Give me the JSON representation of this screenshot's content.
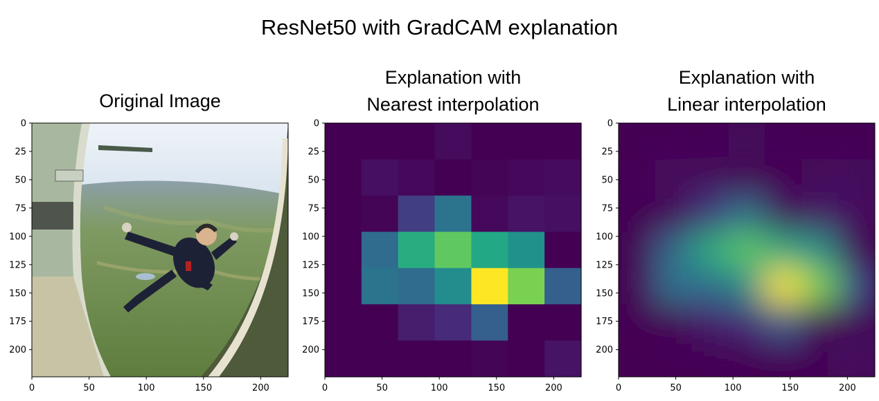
{
  "figure": {
    "suptitle": "ResNet50 with GradCAM explanation"
  },
  "colors": {
    "viridis": [
      "#440154",
      "#482475",
      "#414487",
      "#355f8d",
      "#2a788e",
      "#21918c",
      "#22a884",
      "#44bf70",
      "#7ad151",
      "#bddf26",
      "#fde725"
    ],
    "sky": "#b9cfe2",
    "fuselage": "#a8b8a0",
    "earth": "#6f8a4a",
    "jumpsuit": "#1d2135"
  },
  "chart_data": [
    {
      "type": "heatmap",
      "title": "Original Image",
      "content": "photo",
      "photo_icon": "skydiver-photo",
      "xlim": [
        0,
        224
      ],
      "ylim": [
        224,
        0
      ],
      "xticks": [
        0,
        50,
        100,
        150,
        200
      ],
      "yticks": [
        0,
        25,
        50,
        75,
        100,
        125,
        150,
        175,
        200
      ]
    },
    {
      "type": "heatmap",
      "title": "Explanation with\nNearest interpolation",
      "interpolation": "nearest",
      "colormap": "viridis",
      "xlim": [
        0,
        224
      ],
      "ylim": [
        224,
        0
      ],
      "xticks": [
        0,
        50,
        100,
        150,
        200
      ],
      "yticks": [
        0,
        25,
        50,
        75,
        100,
        125,
        150,
        175,
        200
      ],
      "grid_size": [
        7,
        7
      ],
      "values": [
        [
          0.0,
          0.0,
          0.0,
          0.03,
          0.0,
          0.0,
          0.0
        ],
        [
          0.0,
          0.04,
          0.02,
          0.0,
          0.01,
          0.02,
          0.03
        ],
        [
          0.0,
          0.01,
          0.18,
          0.38,
          0.02,
          0.05,
          0.04
        ],
        [
          0.0,
          0.35,
          0.62,
          0.75,
          0.6,
          0.5,
          0.0
        ],
        [
          0.0,
          0.38,
          0.35,
          0.48,
          1.0,
          0.8,
          0.3
        ],
        [
          0.0,
          0.0,
          0.08,
          0.12,
          0.3,
          0.0,
          0.0
        ],
        [
          0.0,
          0.0,
          0.0,
          0.0,
          0.01,
          0.0,
          0.05
        ]
      ]
    },
    {
      "type": "heatmap",
      "title": "Explanation with\nLinear interpolation",
      "interpolation": "linear",
      "colormap": "viridis",
      "xlim": [
        0,
        224
      ],
      "ylim": [
        224,
        0
      ],
      "xticks": [
        0,
        50,
        100,
        150,
        200
      ],
      "yticks": [
        0,
        25,
        50,
        75,
        100,
        125,
        150,
        175,
        200
      ],
      "values_source": "same 7x7 grid as nearest panel"
    }
  ]
}
